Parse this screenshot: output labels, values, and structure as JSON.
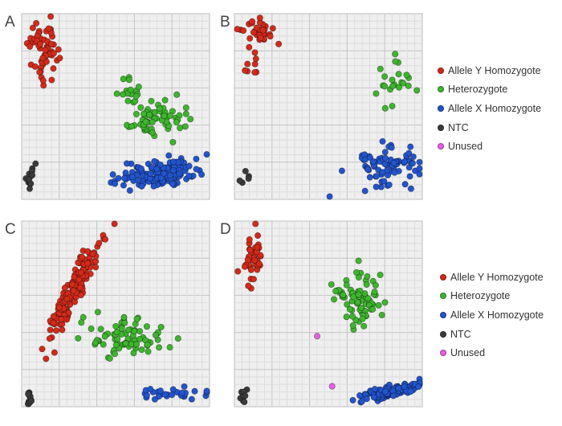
{
  "panels": [
    {
      "label": "A"
    },
    {
      "label": "B"
    },
    {
      "label": "C"
    },
    {
      "label": "D"
    }
  ],
  "legend": [
    {
      "label": "Allele Y Homozygote",
      "color": "#d32a1a"
    },
    {
      "label": "Heterozygote",
      "color": "#3db52d"
    },
    {
      "label": "Allele X Homozygote",
      "color": "#2254cc"
    },
    {
      "label": "NTC",
      "color": "#3a3a3a"
    },
    {
      "label": "Unused",
      "color": "#e65ee6"
    }
  ],
  "chart_data": [
    {
      "type": "scatter",
      "panel": "A",
      "xlim": [
        0,
        1
      ],
      "ylim": [
        0,
        1
      ],
      "grid": true,
      "ticks": false,
      "series": [
        {
          "name": "Allele Y Homozygote",
          "color": "#d32a1a",
          "clusters": [
            {
              "cx": 0.12,
              "cy": 0.83,
              "sx": 0.04,
              "sy": 0.075,
              "n": 55,
              "rho": 0
            },
            {
              "cx": 0.1,
              "cy": 0.67,
              "sx": 0.02,
              "sy": 0.04,
              "n": 6,
              "rho": 0
            }
          ]
        },
        {
          "name": "Heterozygote",
          "color": "#3db52d",
          "clusters": [
            {
              "cx": 0.69,
              "cy": 0.43,
              "sx": 0.08,
              "sy": 0.05,
              "n": 65,
              "rho": 0
            },
            {
              "cx": 0.56,
              "cy": 0.6,
              "sx": 0.05,
              "sy": 0.04,
              "n": 15,
              "rho": 0
            }
          ]
        },
        {
          "name": "Allele X Homozygote",
          "color": "#2254cc",
          "clusters": [
            {
              "cx": 0.75,
              "cy": 0.14,
              "sx": 0.1,
              "sy": 0.035,
              "n": 150,
              "rho": 0.2
            },
            {
              "cx": 0.5,
              "cy": 0.12,
              "sx": 0.02,
              "sy": 0.02,
              "n": 3,
              "rho": 0
            }
          ]
        },
        {
          "name": "NTC",
          "color": "#3a3a3a",
          "clusters": [
            {
              "cx": 0.05,
              "cy": 0.11,
              "sx": 0.012,
              "sy": 0.035,
              "n": 14,
              "rho": 0
            }
          ]
        }
      ]
    },
    {
      "type": "scatter",
      "panel": "B",
      "xlim": [
        0,
        1
      ],
      "ylim": [
        0,
        1
      ],
      "grid": true,
      "ticks": false,
      "series": [
        {
          "name": "Allele Y Homozygote",
          "color": "#d32a1a",
          "clusters": [
            {
              "cx": 0.12,
              "cy": 0.9,
              "sx": 0.05,
              "sy": 0.04,
              "n": 30,
              "rho": 0
            },
            {
              "cx": 0.09,
              "cy": 0.75,
              "sx": 0.03,
              "sy": 0.05,
              "n": 10,
              "rho": 0
            }
          ]
        },
        {
          "name": "Heterozygote",
          "color": "#3db52d",
          "clusters": [
            {
              "cx": 0.84,
              "cy": 0.63,
              "sx": 0.05,
              "sy": 0.07,
              "n": 22,
              "rho": 0
            }
          ]
        },
        {
          "name": "Allele X Homozygote",
          "color": "#2254cc",
          "clusters": [
            {
              "cx": 0.8,
              "cy": 0.17,
              "sx": 0.09,
              "sy": 0.05,
              "n": 85,
              "rho": 0.25
            }
          ]
        },
        {
          "name": "NTC",
          "color": "#3a3a3a",
          "clusters": [
            {
              "cx": 0.06,
              "cy": 0.1,
              "sx": 0.02,
              "sy": 0.02,
              "n": 5,
              "rho": 0
            }
          ]
        }
      ]
    },
    {
      "type": "scatter",
      "panel": "C",
      "xlim": [
        0,
        1
      ],
      "ylim": [
        0,
        1
      ],
      "grid": true,
      "ticks": false,
      "series": [
        {
          "name": "Allele Y Homozygote",
          "color": "#d32a1a",
          "clusters": [
            {
              "cx": 0.28,
              "cy": 0.64,
              "sx": 0.07,
              "sy": 0.13,
              "n": 160,
              "rho": 0.93
            }
          ]
        },
        {
          "name": "Heterozygote",
          "color": "#3db52d",
          "clusters": [
            {
              "cx": 0.55,
              "cy": 0.37,
              "sx": 0.09,
              "sy": 0.05,
              "n": 80,
              "rho": 0
            }
          ]
        },
        {
          "name": "Allele X Homozygote",
          "color": "#2254cc",
          "clusters": [
            {
              "cx": 0.8,
              "cy": 0.07,
              "sx": 0.1,
              "sy": 0.015,
              "n": 30,
              "rho": 0
            }
          ]
        },
        {
          "name": "NTC",
          "color": "#3a3a3a",
          "clusters": [
            {
              "cx": 0.04,
              "cy": 0.06,
              "sx": 0.006,
              "sy": 0.03,
              "n": 12,
              "rho": 0
            }
          ]
        }
      ]
    },
    {
      "type": "scatter",
      "panel": "D",
      "xlim": [
        0,
        1
      ],
      "ylim": [
        0,
        1
      ],
      "grid": true,
      "ticks": false,
      "series": [
        {
          "name": "Allele Y Homozygote",
          "color": "#d32a1a",
          "clusters": [
            {
              "cx": 0.1,
              "cy": 0.8,
              "sx": 0.03,
              "sy": 0.07,
              "n": 45,
              "rho": 0
            }
          ]
        },
        {
          "name": "Heterozygote",
          "color": "#3db52d",
          "clusters": [
            {
              "cx": 0.68,
              "cy": 0.58,
              "sx": 0.05,
              "sy": 0.07,
              "n": 70,
              "rho": 0
            },
            {
              "cx": 0.55,
              "cy": 0.62,
              "sx": 0.02,
              "sy": 0.02,
              "n": 8,
              "rho": 0
            }
          ]
        },
        {
          "name": "Allele X Homozygote",
          "color": "#2254cc",
          "clusters": [
            {
              "cx": 0.82,
              "cy": 0.08,
              "sx": 0.1,
              "sy": 0.025,
              "n": 120,
              "rho": 0.75
            }
          ]
        },
        {
          "name": "NTC",
          "color": "#3a3a3a",
          "clusters": [
            {
              "cx": 0.05,
              "cy": 0.06,
              "sx": 0.01,
              "sy": 0.02,
              "n": 8,
              "rho": 0
            }
          ]
        },
        {
          "name": "Unused",
          "color": "#e65ee6",
          "clusters": [
            {
              "cx": 0.44,
              "cy": 0.38,
              "sx": 0.0,
              "sy": 0.0,
              "n": 1,
              "rho": 0
            },
            {
              "cx": 0.52,
              "cy": 0.11,
              "sx": 0.0,
              "sy": 0.0,
              "n": 1,
              "rho": 0
            }
          ]
        }
      ]
    }
  ]
}
